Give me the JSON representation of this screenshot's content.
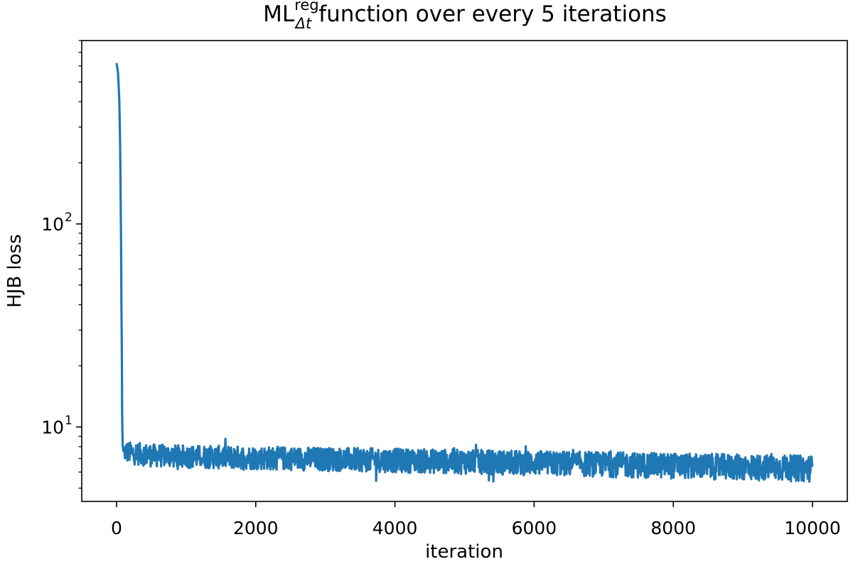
{
  "chart_data": {
    "type": "line",
    "title": {
      "base": "ML",
      "superscript": "reg",
      "subscript": "Δt",
      "rest": "function over every 5 iterations"
    },
    "xlabel": "iteration",
    "ylabel": "HJB loss",
    "yscale": "log",
    "xlim": [
      -500,
      10500
    ],
    "ylim": [
      4.3,
      800
    ],
    "xticks": [
      0,
      2000,
      4000,
      6000,
      8000,
      10000
    ],
    "xtick_labels": [
      "0",
      "2000",
      "4000",
      "6000",
      "8000",
      "10000"
    ],
    "yticks": [
      {
        "value": 10,
        "base": "10",
        "exp": "1"
      },
      {
        "value": 100,
        "base": "10",
        "exp": "2"
      }
    ],
    "grid": false,
    "legend": "none",
    "series": [
      {
        "color": "#1f77b4",
        "x": [
          0,
          20,
          40,
          60,
          70,
          80,
          85,
          90,
          100,
          200,
          500,
          1000,
          2000,
          3000,
          4000,
          5000,
          6000,
          7000,
          8000,
          9000,
          10000
        ],
        "y": [
          620,
          560,
          400,
          120,
          40,
          12,
          9,
          8,
          7.6,
          7.5,
          7.3,
          7.2,
          7.1,
          7.0,
          6.9,
          6.8,
          6.7,
          6.6,
          6.5,
          6.4,
          6.3
        ],
        "band": [
          0.9,
          0.9,
          0.9,
          0.9,
          0.9,
          0.9,
          0.9,
          0.9,
          1.0,
          1.1,
          1.1,
          1.1,
          1.1,
          1.1,
          1.1,
          1.1,
          1.1,
          1.1,
          1.1,
          1.1,
          1.1
        ]
      }
    ]
  }
}
